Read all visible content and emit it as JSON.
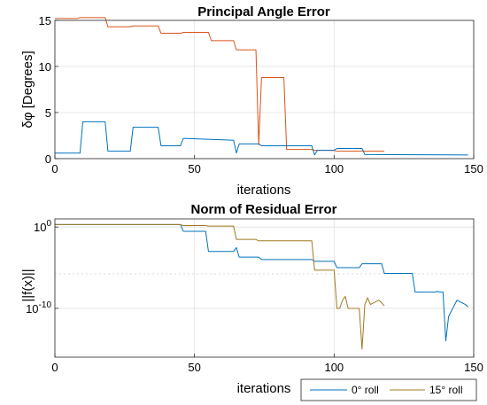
{
  "chart_data": [
    {
      "type": "line",
      "title": "Principal Angle Error",
      "xlabel": "iterations",
      "ylabel": "δφ [Degrees]",
      "xlim": [
        0,
        150
      ],
      "ylim": [
        0,
        15
      ],
      "xticks": [
        "0",
        "50",
        "100",
        "150"
      ],
      "yticks": [
        "0",
        "5",
        "10",
        "15"
      ],
      "xtick_values": [
        0,
        50,
        100,
        150
      ],
      "ytick_values": [
        0,
        5,
        10,
        15
      ],
      "grid": true,
      "series": [
        {
          "color": "#D95319",
          "x": [
            0,
            8,
            9,
            18,
            19,
            27,
            28,
            37,
            38,
            45,
            46,
            55,
            56,
            64,
            65,
            72,
            73,
            74,
            82,
            83,
            92,
            93,
            100,
            101,
            118
          ],
          "y": [
            15.2,
            15.2,
            15.3,
            15.3,
            14.3,
            14.3,
            14.4,
            14.4,
            13.6,
            13.6,
            13.7,
            13.7,
            12.8,
            12.8,
            11.8,
            11.8,
            1.5,
            8.8,
            8.8,
            1.0,
            1.0,
            0.9,
            0.9,
            0.8,
            0.8
          ]
        },
        {
          "color": "#0072BD",
          "x": [
            0,
            9,
            10,
            18,
            19,
            27,
            28,
            37,
            38,
            45,
            46,
            64,
            65,
            66,
            73,
            74,
            92,
            93,
            94,
            100,
            101,
            110,
            111,
            148
          ],
          "y": [
            0.6,
            0.6,
            4.0,
            4.0,
            0.8,
            0.8,
            3.4,
            3.4,
            1.4,
            1.4,
            2.2,
            2.0,
            0.6,
            1.6,
            1.6,
            1.4,
            1.4,
            0.4,
            0.9,
            0.9,
            1.1,
            1.1,
            0.45,
            0.4
          ]
        }
      ]
    },
    {
      "type": "line",
      "title": "Norm of Residual Error",
      "xlabel": "iterations",
      "ylabel": "||f(x)||",
      "yscale": "log",
      "xlim": [
        0,
        150
      ],
      "ylim": [
        1e-16,
        10
      ],
      "xticks": [
        "0",
        "50",
        "100",
        "150"
      ],
      "yticks": [
        "10^0",
        "10^-10"
      ],
      "xtick_values": [
        0,
        50,
        100,
        150
      ],
      "ytick_values": [
        1,
        1e-10
      ],
      "grid": true,
      "legend_position": "bottom-right",
      "series": [
        {
          "name": "0° roll",
          "color": "#0072BD",
          "x": [
            0,
            45,
            46,
            54,
            55,
            64,
            65,
            66,
            73,
            74,
            92,
            93,
            100,
            101,
            109,
            110,
            117,
            118,
            128,
            129,
            136,
            137,
            138,
            139,
            140,
            141,
            144,
            147,
            148
          ],
          "y": [
            2,
            2,
            0.3,
            0.3,
            0.001,
            0.001,
            0.003,
            0.0002,
            0.0002,
            0.0001,
            0.0001,
            6e-05,
            6e-05,
            1e-05,
            1e-05,
            3e-05,
            3e-05,
            2e-06,
            2e-06,
            1e-08,
            1e-08,
            1.2e-08,
            1e-08,
            1e-08,
            1e-14,
            1e-11,
            1e-09,
            3e-10,
            1.5e-10
          ]
        },
        {
          "name": "15° roll",
          "color": "#A2781F",
          "x": [
            0,
            45,
            46,
            54,
            55,
            64,
            65,
            72,
            73,
            92,
            93,
            100,
            101,
            102,
            103,
            104,
            105,
            108,
            109,
            110,
            111,
            112,
            113,
            116,
            117,
            118
          ],
          "y": [
            2,
            2,
            1.5,
            1.5,
            1.3,
            1.3,
            0.03,
            0.03,
            0.02,
            0.02,
            5e-06,
            5e-06,
            1e-10,
            1e-10,
            1e-09,
            3e-09,
            1e-10,
            1e-10,
            1e-10,
            1e-15,
            3e-10,
            2e-09,
            3e-10,
            1e-09,
            5e-10,
            2e-10
          ]
        }
      ]
    }
  ],
  "colors": {
    "axes_border": "#262626",
    "grid": "#DFDFDF",
    "dotted_ref": "#CFCFCF"
  }
}
